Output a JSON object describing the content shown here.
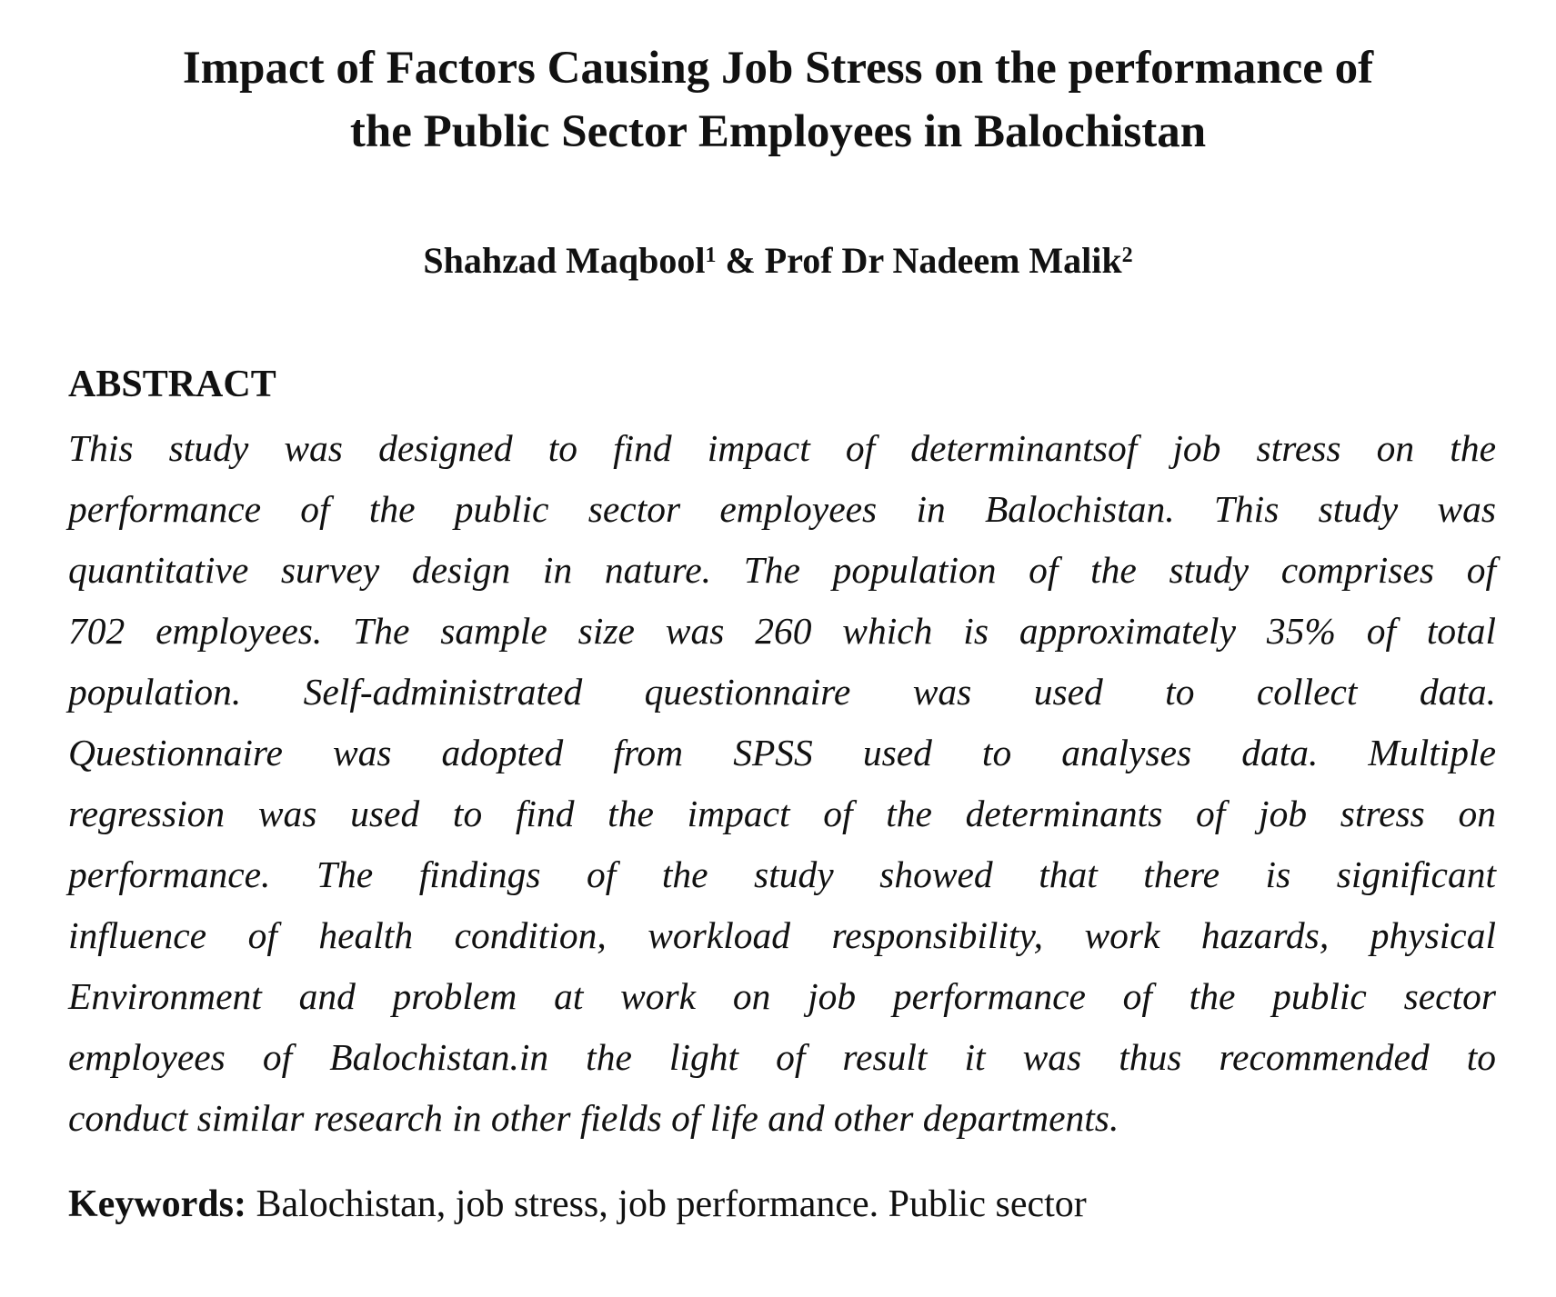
{
  "title_lines": [
    "Impact of Factors Causing Job Stress on the performance of",
    "the Public Sector Employees in Balochistan"
  ],
  "authors": {
    "author1": "Shahzad Maqbool",
    "sup1": "1",
    "sep": " & ",
    "author2": "Prof Dr Nadeem Malik",
    "sup2": "2"
  },
  "abstract_heading": "ABSTRACT",
  "abstract_lines": [
    "This study was designed to find impact of determinantsof job stress on the",
    "performance of the public sector employees in Balochistan. This study was",
    "quantitative survey design in nature. The population of the study comprises of",
    "702 employees. The sample size was 260 which is approximately 35% of total",
    "population. Self-administrated questionnaire was used to collect data.",
    "Questionnaire was adopted from SPSS used to analyses data. Multiple",
    "regression was used to find the impact of the determinants of job stress on",
    "performance. The findings of the study showed that there is significant",
    "influence of health condition, workload responsibility, work hazards, physical",
    "Environment and problem at work on job performance of the public sector",
    "employees of Balochistan.in the light of result it was thus recommended to",
    "conduct similar research in other fields of life and other departments."
  ],
  "keywords": {
    "label": "Keywords:",
    "value": " Balochistan, job stress, job performance. Public sector"
  }
}
